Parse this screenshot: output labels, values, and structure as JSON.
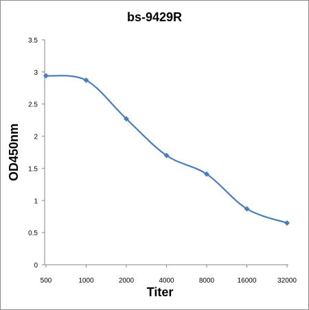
{
  "chart_data": {
    "type": "line",
    "title": "bs-9429R",
    "xlabel": "Titer",
    "ylabel": "OD450nm",
    "categories": [
      "500",
      "1000",
      "2000",
      "4000",
      "8000",
      "16000",
      "32000"
    ],
    "series": [
      {
        "values": [
          2.94,
          2.87,
          2.27,
          1.7,
          1.41,
          0.87,
          0.65
        ],
        "color": "#4a7ebb"
      }
    ],
    "ylim": [
      0,
      3.5
    ],
    "yticks": [
      "0",
      "0.5",
      "1",
      "1.5",
      "2",
      "2.5",
      "3",
      "3.5"
    ],
    "grid": false,
    "legend": "none",
    "marker": "diamond",
    "smooth": true
  }
}
